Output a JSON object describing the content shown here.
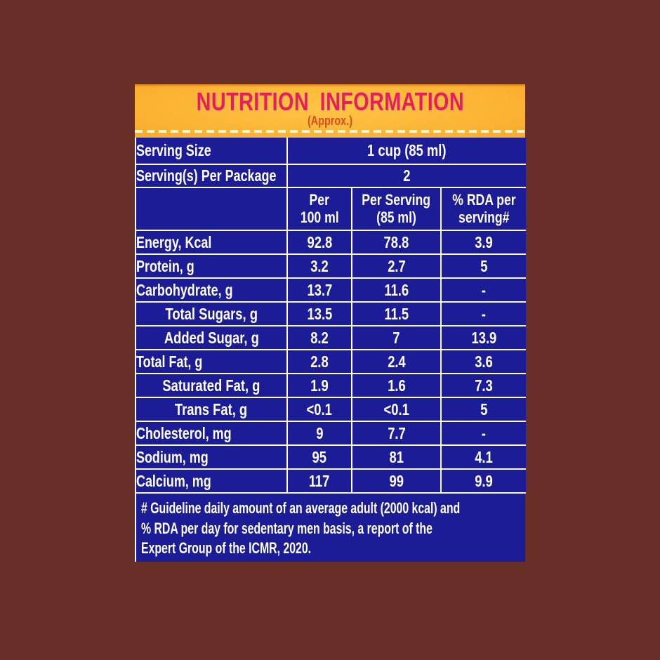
{
  "label": {
    "title": "NUTRITION INFORMATION",
    "subtitle": "(Approx.)"
  },
  "serving": {
    "size_label": "Serving Size",
    "size_value": "1 cup (85 ml)",
    "per_package_label": "Serving(s) Per Package",
    "per_package_value": "2"
  },
  "table": {
    "columns": [
      {
        "line1": "Per",
        "line2": "100 ml"
      },
      {
        "line1": "Per Serving",
        "line2": "(85 ml)"
      },
      {
        "line1": "% RDA per",
        "line2": "serving#"
      }
    ],
    "rows": [
      {
        "name": "Energy, Kcal",
        "sub": false,
        "per_100ml": "92.8",
        "per_serving": "78.8",
        "rda_percent": "3.9"
      },
      {
        "name": "Protein, g",
        "sub": false,
        "per_100ml": "3.2",
        "per_serving": "2.7",
        "rda_percent": "5"
      },
      {
        "name": "Carbohydrate, g",
        "sub": false,
        "per_100ml": "13.7",
        "per_serving": "11.6",
        "rda_percent": "-"
      },
      {
        "name": "Total Sugars, g",
        "sub": true,
        "per_100ml": "13.5",
        "per_serving": "11.5",
        "rda_percent": "-"
      },
      {
        "name": "Added Sugar, g",
        "sub": true,
        "per_100ml": "8.2",
        "per_serving": "7",
        "rda_percent": "13.9"
      },
      {
        "name": "Total Fat, g",
        "sub": false,
        "per_100ml": "2.8",
        "per_serving": "2.4",
        "rda_percent": "3.6"
      },
      {
        "name": "Saturated Fat, g",
        "sub": true,
        "per_100ml": "1.9",
        "per_serving": "1.6",
        "rda_percent": "7.3"
      },
      {
        "name": "Trans Fat, g",
        "sub": true,
        "per_100ml": "<0.1",
        "per_serving": "<0.1",
        "rda_percent": "5"
      },
      {
        "name": "Cholesterol, mg",
        "sub": false,
        "per_100ml": "9",
        "per_serving": "7.7",
        "rda_percent": "-"
      },
      {
        "name": "Sodium, mg",
        "sub": false,
        "per_100ml": "95",
        "per_serving": "81",
        "rda_percent": "4.1"
      },
      {
        "name": "Calcium, mg",
        "sub": false,
        "per_100ml": "117",
        "per_serving": "99",
        "rda_percent": "9.9"
      }
    ]
  },
  "footnote": {
    "lines": [
      "# Guideline daily amount of an average adult (2000 kcal) and",
      "% RDA per day for sedentary men basis, a report of the",
      "Expert Group of the ICMR, 2020."
    ]
  },
  "colors": {
    "background_brown": "#682E27",
    "panel_blue": "#1C1C96",
    "banner_orange_edge": "#EF931D",
    "banner_yellow_center": "#FFC445",
    "title_pink": "#E61E5F",
    "subtitle_orange_red": "#DC4B1E",
    "gridline_white": "#FBFBF6",
    "dashed_line_cream": "#FFF4D6"
  }
}
